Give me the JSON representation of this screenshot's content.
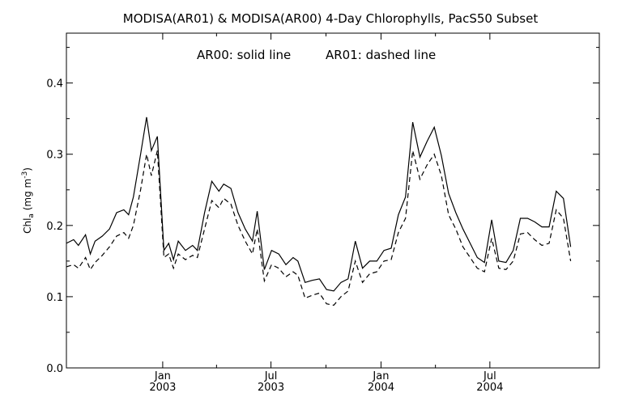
{
  "chart_data": {
    "type": "line",
    "title": "MODISA(AR01) & MODISA(AR00) 4-Day Chlorophylls, PacS50 Subset",
    "annotation_left": "AR00: solid line",
    "annotation_right": "AR01: dashed line",
    "ylabel": {
      "main": "Chl",
      "subscript": "a",
      "unit_open": " (mg m",
      "unit_sup": "-3",
      "unit_close": ")"
    },
    "ylim": [
      0.0,
      0.47
    ],
    "xlim": [
      "2002-07-24",
      "2004-12-31"
    ],
    "yticks": [
      {
        "value": 0.0,
        "label": "0.0"
      },
      {
        "value": 0.1,
        "label": "0.1"
      },
      {
        "value": 0.2,
        "label": "0.2"
      },
      {
        "value": 0.3,
        "label": "0.3"
      },
      {
        "value": 0.4,
        "label": "0.4"
      }
    ],
    "xticks": [
      {
        "date": "2003-01-01",
        "month": "Jan",
        "year": "2003"
      },
      {
        "date": "2003-07-01",
        "month": "Jul",
        "year": "2003"
      },
      {
        "date": "2004-01-01",
        "month": "Jan",
        "year": "2004"
      },
      {
        "date": "2004-07-01",
        "month": "Jul",
        "year": "2004"
      }
    ],
    "grid": false,
    "legend": "none",
    "series": [
      {
        "name": "AR00",
        "style": "solid",
        "points": [
          [
            "2002-07-24",
            0.175
          ],
          [
            "2002-08-05",
            0.18
          ],
          [
            "2002-08-13",
            0.172
          ],
          [
            "2002-08-25",
            0.187
          ],
          [
            "2002-09-02",
            0.16
          ],
          [
            "2002-09-10",
            0.178
          ],
          [
            "2002-09-22",
            0.185
          ],
          [
            "2002-10-04",
            0.195
          ],
          [
            "2002-10-16",
            0.218
          ],
          [
            "2002-10-28",
            0.222
          ],
          [
            "2002-11-05",
            0.215
          ],
          [
            "2002-11-13",
            0.24
          ],
          [
            "2002-11-25",
            0.3
          ],
          [
            "2002-12-05",
            0.352
          ],
          [
            "2002-12-13",
            0.305
          ],
          [
            "2002-12-23",
            0.325
          ],
          [
            "2003-01-03",
            0.165
          ],
          [
            "2003-01-11",
            0.175
          ],
          [
            "2003-01-19",
            0.152
          ],
          [
            "2003-01-27",
            0.178
          ],
          [
            "2003-02-08",
            0.165
          ],
          [
            "2003-02-20",
            0.172
          ],
          [
            "2003-02-28",
            0.165
          ],
          [
            "2003-03-12",
            0.218
          ],
          [
            "2003-03-24",
            0.262
          ],
          [
            "2003-04-05",
            0.248
          ],
          [
            "2003-04-13",
            0.258
          ],
          [
            "2003-04-25",
            0.252
          ],
          [
            "2003-05-07",
            0.218
          ],
          [
            "2003-05-19",
            0.195
          ],
          [
            "2003-05-31",
            0.178
          ],
          [
            "2003-06-08",
            0.22
          ],
          [
            "2003-06-20",
            0.138
          ],
          [
            "2003-07-02",
            0.165
          ],
          [
            "2003-07-14",
            0.16
          ],
          [
            "2003-07-26",
            0.145
          ],
          [
            "2003-08-07",
            0.155
          ],
          [
            "2003-08-15",
            0.15
          ],
          [
            "2003-08-27",
            0.12
          ],
          [
            "2003-09-08",
            0.123
          ],
          [
            "2003-09-20",
            0.125
          ],
          [
            "2003-10-02",
            0.11
          ],
          [
            "2003-10-14",
            0.108
          ],
          [
            "2003-10-26",
            0.12
          ],
          [
            "2003-11-07",
            0.125
          ],
          [
            "2003-11-19",
            0.178
          ],
          [
            "2003-12-01",
            0.14
          ],
          [
            "2003-12-13",
            0.15
          ],
          [
            "2003-12-25",
            0.15
          ],
          [
            "2004-01-06",
            0.165
          ],
          [
            "2004-01-18",
            0.168
          ],
          [
            "2004-01-30",
            0.215
          ],
          [
            "2004-02-11",
            0.24
          ],
          [
            "2004-02-23",
            0.345
          ],
          [
            "2004-03-06",
            0.296
          ],
          [
            "2004-03-18",
            0.318
          ],
          [
            "2004-03-30",
            0.338
          ],
          [
            "2004-04-11",
            0.298
          ],
          [
            "2004-04-23",
            0.245
          ],
          [
            "2004-05-05",
            0.218
          ],
          [
            "2004-05-17",
            0.195
          ],
          [
            "2004-05-29",
            0.175
          ],
          [
            "2004-06-10",
            0.155
          ],
          [
            "2004-06-22",
            0.148
          ],
          [
            "2004-07-04",
            0.208
          ],
          [
            "2004-07-16",
            0.15
          ],
          [
            "2004-07-28",
            0.148
          ],
          [
            "2004-08-09",
            0.165
          ],
          [
            "2004-08-21",
            0.21
          ],
          [
            "2004-09-02",
            0.21
          ],
          [
            "2004-09-14",
            0.205
          ],
          [
            "2004-09-26",
            0.198
          ],
          [
            "2004-10-08",
            0.198
          ],
          [
            "2004-10-20",
            0.248
          ],
          [
            "2004-11-01",
            0.238
          ],
          [
            "2004-11-13",
            0.17
          ]
        ]
      },
      {
        "name": "AR01",
        "style": "dashed",
        "points": [
          [
            "2002-07-24",
            0.142
          ],
          [
            "2002-08-05",
            0.145
          ],
          [
            "2002-08-13",
            0.14
          ],
          [
            "2002-08-25",
            0.155
          ],
          [
            "2002-09-02",
            0.138
          ],
          [
            "2002-09-10",
            0.148
          ],
          [
            "2002-09-22",
            0.158
          ],
          [
            "2002-10-04",
            0.17
          ],
          [
            "2002-10-16",
            0.185
          ],
          [
            "2002-10-28",
            0.19
          ],
          [
            "2002-11-05",
            0.182
          ],
          [
            "2002-11-13",
            0.2
          ],
          [
            "2002-11-25",
            0.25
          ],
          [
            "2002-12-05",
            0.3
          ],
          [
            "2002-12-13",
            0.27
          ],
          [
            "2002-12-23",
            0.305
          ],
          [
            "2003-01-03",
            0.155
          ],
          [
            "2003-01-11",
            0.16
          ],
          [
            "2003-01-19",
            0.14
          ],
          [
            "2003-01-27",
            0.16
          ],
          [
            "2003-02-08",
            0.152
          ],
          [
            "2003-02-20",
            0.158
          ],
          [
            "2003-02-28",
            0.155
          ],
          [
            "2003-03-12",
            0.195
          ],
          [
            "2003-03-24",
            0.235
          ],
          [
            "2003-04-05",
            0.225
          ],
          [
            "2003-04-13",
            0.238
          ],
          [
            "2003-04-25",
            0.23
          ],
          [
            "2003-05-07",
            0.2
          ],
          [
            "2003-05-19",
            0.178
          ],
          [
            "2003-05-31",
            0.16
          ],
          [
            "2003-06-08",
            0.195
          ],
          [
            "2003-06-20",
            0.122
          ],
          [
            "2003-07-02",
            0.145
          ],
          [
            "2003-07-14",
            0.14
          ],
          [
            "2003-07-26",
            0.128
          ],
          [
            "2003-08-07",
            0.135
          ],
          [
            "2003-08-15",
            0.13
          ],
          [
            "2003-08-27",
            0.098
          ],
          [
            "2003-09-08",
            0.102
          ],
          [
            "2003-09-20",
            0.105
          ],
          [
            "2003-10-02",
            0.09
          ],
          [
            "2003-10-14",
            0.088
          ],
          [
            "2003-10-26",
            0.1
          ],
          [
            "2003-11-07",
            0.108
          ],
          [
            "2003-11-19",
            0.15
          ],
          [
            "2003-12-01",
            0.12
          ],
          [
            "2003-12-13",
            0.132
          ],
          [
            "2003-12-25",
            0.135
          ],
          [
            "2004-01-06",
            0.15
          ],
          [
            "2004-01-18",
            0.152
          ],
          [
            "2004-01-30",
            0.19
          ],
          [
            "2004-02-11",
            0.21
          ],
          [
            "2004-02-23",
            0.305
          ],
          [
            "2004-03-06",
            0.265
          ],
          [
            "2004-03-18",
            0.285
          ],
          [
            "2004-03-30",
            0.3
          ],
          [
            "2004-04-11",
            0.27
          ],
          [
            "2004-04-23",
            0.215
          ],
          [
            "2004-05-05",
            0.195
          ],
          [
            "2004-05-17",
            0.17
          ],
          [
            "2004-05-29",
            0.155
          ],
          [
            "2004-06-10",
            0.14
          ],
          [
            "2004-06-22",
            0.135
          ],
          [
            "2004-07-04",
            0.182
          ],
          [
            "2004-07-16",
            0.14
          ],
          [
            "2004-07-28",
            0.138
          ],
          [
            "2004-08-09",
            0.15
          ],
          [
            "2004-08-21",
            0.188
          ],
          [
            "2004-09-02",
            0.19
          ],
          [
            "2004-09-14",
            0.18
          ],
          [
            "2004-09-26",
            0.172
          ],
          [
            "2004-10-08",
            0.175
          ],
          [
            "2004-10-20",
            0.222
          ],
          [
            "2004-11-01",
            0.21
          ],
          [
            "2004-11-13",
            0.15
          ]
        ]
      }
    ]
  }
}
